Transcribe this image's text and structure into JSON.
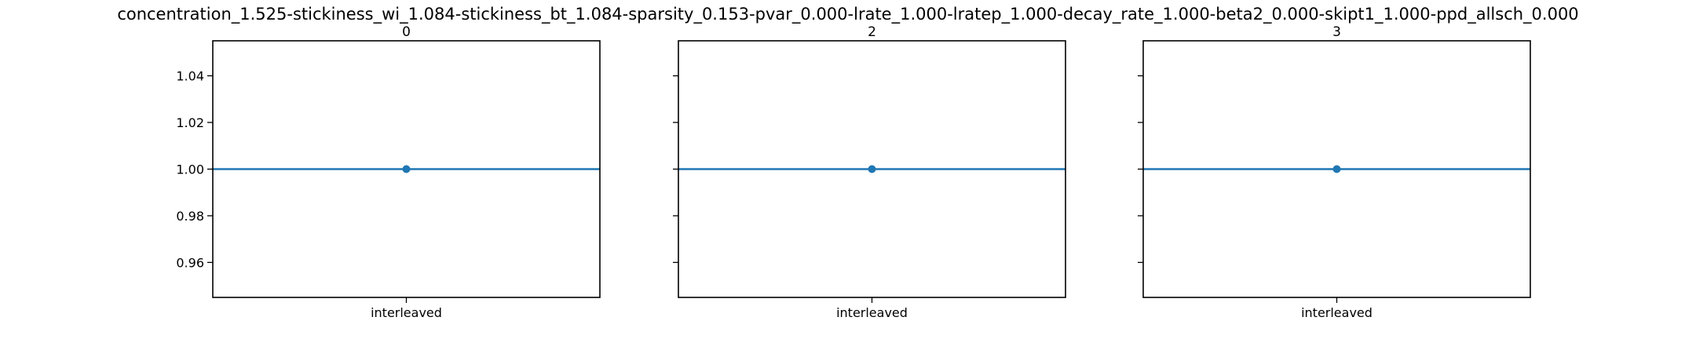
{
  "figure": {
    "suptitle": "concentration_1.525-stickiness_wi_1.084-stickiness_bt_1.084-sparsity_0.153-pvar_0.000-lrate_1.000-lratep_1.000-decay_rate_1.000-beta2_0.000-skipt1_1.000-ppd_allsch_0.000"
  },
  "chart_data": [
    {
      "type": "line",
      "title": "0",
      "categories": [
        "interleaved"
      ],
      "series": [
        {
          "values": [
            1.0
          ],
          "xerr": [
            0.5
          ],
          "color": "#1f77b4"
        }
      ],
      "ylim": [
        0.945,
        1.055
      ],
      "yticks": [
        0.96,
        0.98,
        1.0,
        1.02,
        1.04
      ],
      "ytick_labels": [
        "0.96",
        "0.98",
        "1.00",
        "1.02",
        "1.04"
      ],
      "show_ytick_labels": true
    },
    {
      "type": "line",
      "title": "2",
      "categories": [
        "interleaved"
      ],
      "series": [
        {
          "values": [
            1.0
          ],
          "xerr": [
            0.5
          ],
          "color": "#1f77b4"
        }
      ],
      "ylim": [
        0.945,
        1.055
      ],
      "yticks": [
        0.96,
        0.98,
        1.0,
        1.02,
        1.04
      ],
      "ytick_labels": [
        "0.96",
        "0.98",
        "1.00",
        "1.02",
        "1.04"
      ],
      "show_ytick_labels": false
    },
    {
      "type": "line",
      "title": "3",
      "categories": [
        "interleaved"
      ],
      "series": [
        {
          "values": [
            1.0
          ],
          "xerr": [
            0.5
          ],
          "color": "#1f77b4"
        }
      ],
      "ylim": [
        0.945,
        1.055
      ],
      "yticks": [
        0.96,
        0.98,
        1.0,
        1.02,
        1.04
      ],
      "ytick_labels": [
        "0.96",
        "0.98",
        "1.00",
        "1.02",
        "1.04"
      ],
      "show_ytick_labels": false
    }
  ]
}
